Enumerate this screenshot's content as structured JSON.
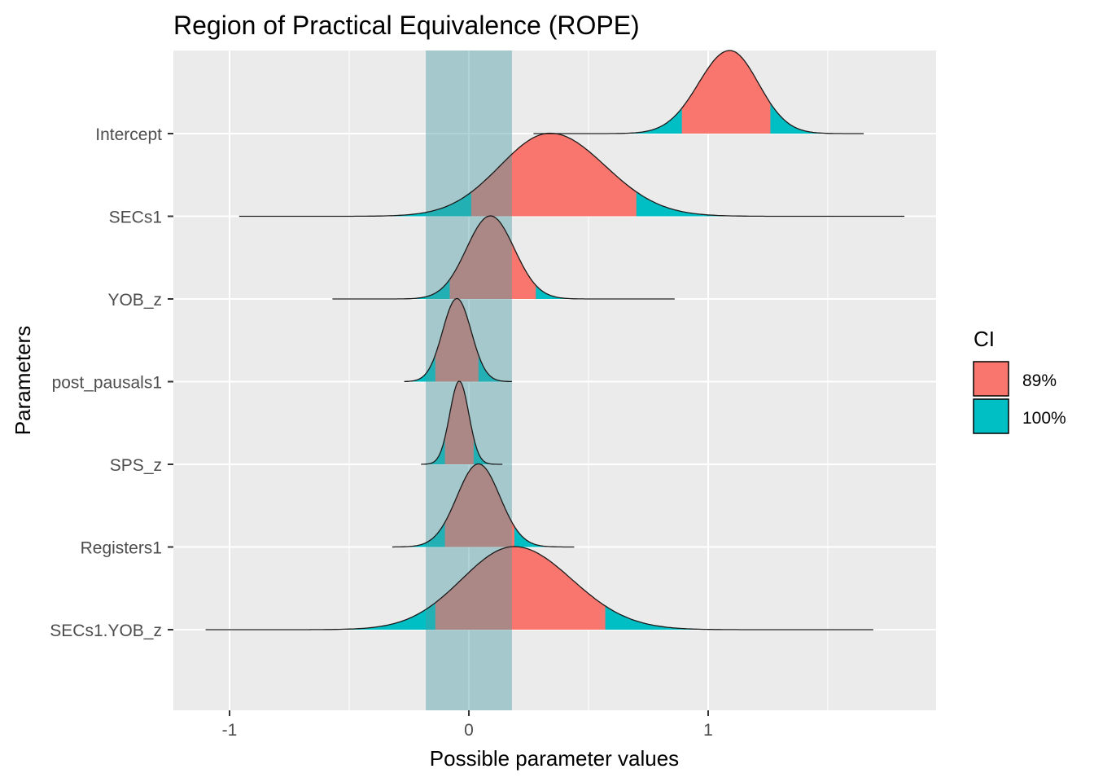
{
  "chart_data": {
    "type": "area",
    "subtype": "density-ridgeline",
    "title": "Region of Practical Equivalence (ROPE)",
    "xlabel": "Possible parameter values",
    "ylabel": "Parameters",
    "xlim": [
      -1.25,
      1.95
    ],
    "x_ticks": [
      -1,
      0,
      1
    ],
    "x_tick_labels": [
      "-1",
      "0",
      "1"
    ],
    "grid": true,
    "rope": [
      -0.18,
      0.18
    ],
    "rope_color": "#4d9da5",
    "legend": {
      "title": "CI",
      "position": "right",
      "items": [
        {
          "label": "89%",
          "color": "#f8766d"
        },
        {
          "label": "100%",
          "color": "#00bfc4"
        }
      ]
    },
    "parameters": [
      {
        "name": "Intercept",
        "median": 1.09,
        "sd_left": 0.13,
        "sd_right": 0.12,
        "ci89": [
          0.89,
          1.26
        ],
        "range": [
          0.27,
          1.65
        ]
      },
      {
        "name": "SECs1",
        "median": 0.34,
        "sd_left": 0.21,
        "sd_right": 0.23,
        "ci89": [
          0.01,
          0.7
        ],
        "range": [
          -0.96,
          1.82
        ]
      },
      {
        "name": "YOB_z",
        "median": 0.09,
        "sd_left": 0.1,
        "sd_right": 0.1,
        "ci89": [
          -0.08,
          0.28
        ],
        "range": [
          -0.57,
          0.86
        ]
      },
      {
        "name": "post_pausals1",
        "median": -0.05,
        "sd_left": 0.06,
        "sd_right": 0.06,
        "ci89": [
          -0.14,
          0.04
        ],
        "range": [
          -0.27,
          0.18
        ]
      },
      {
        "name": "SPS_z",
        "median": -0.04,
        "sd_left": 0.04,
        "sd_right": 0.04,
        "ci89": [
          -0.1,
          0.02
        ],
        "range": [
          -0.2,
          0.14
        ]
      },
      {
        "name": "Registers1",
        "median": 0.04,
        "sd_left": 0.09,
        "sd_right": 0.09,
        "ci89": [
          -0.1,
          0.19
        ],
        "range": [
          -0.32,
          0.44
        ]
      },
      {
        "name": "SECs1.YOB_z",
        "median": 0.19,
        "sd_left": 0.22,
        "sd_right": 0.24,
        "ci89": [
          -0.14,
          0.57
        ],
        "range": [
          -1.1,
          1.69
        ]
      }
    ]
  }
}
